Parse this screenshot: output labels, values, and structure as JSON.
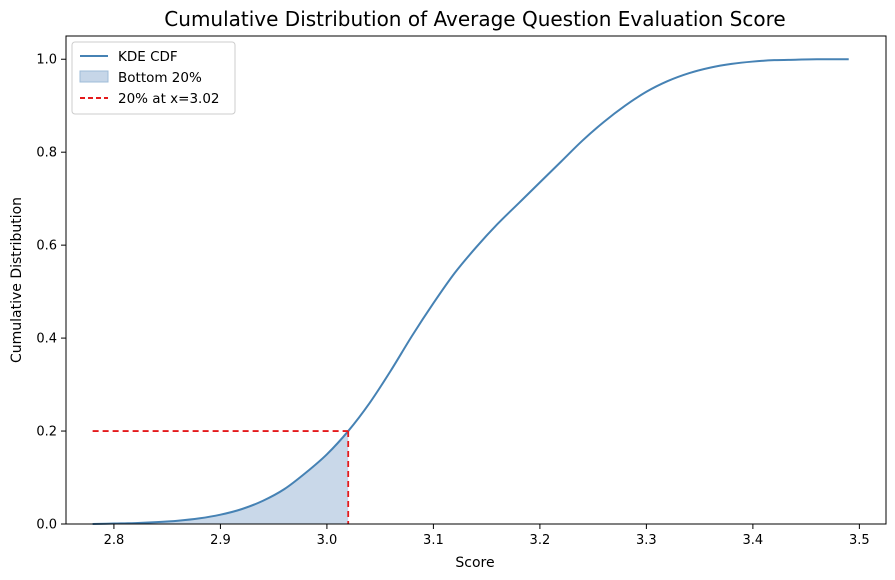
{
  "chart_data": {
    "type": "line",
    "title": "Cumulative Distribution of Average Question Evaluation Score",
    "xlabel": "Score",
    "ylabel": "Cumulative Distribution",
    "xlim": [
      2.755,
      3.525
    ],
    "ylim": [
      0,
      1.05
    ],
    "xticks": [
      2.8,
      2.9,
      3.0,
      3.1,
      3.2,
      3.3,
      3.4,
      3.5
    ],
    "xtick_labels": [
      "2.8",
      "2.9",
      "3.0",
      "3.1",
      "3.2",
      "3.3",
      "3.4",
      "3.5"
    ],
    "yticks": [
      0.0,
      0.2,
      0.4,
      0.6,
      0.8,
      1.0
    ],
    "ytick_labels": [
      "0.0",
      "0.2",
      "0.4",
      "0.6",
      "0.8",
      "1.0"
    ],
    "grid": false,
    "legend_position": "top-left",
    "series": [
      {
        "name": "KDE CDF",
        "color": "#4682b4",
        "x": [
          2.78,
          2.8,
          2.82,
          2.84,
          2.86,
          2.88,
          2.9,
          2.92,
          2.94,
          2.96,
          2.98,
          3.0,
          3.02,
          3.04,
          3.06,
          3.08,
          3.1,
          3.12,
          3.14,
          3.16,
          3.18,
          3.2,
          3.22,
          3.24,
          3.26,
          3.28,
          3.3,
          3.32,
          3.34,
          3.36,
          3.38,
          3.4,
          3.42,
          3.44,
          3.46,
          3.49
        ],
        "y": [
          0.0,
          0.001,
          0.002,
          0.004,
          0.007,
          0.012,
          0.02,
          0.032,
          0.05,
          0.075,
          0.11,
          0.15,
          0.2,
          0.26,
          0.33,
          0.405,
          0.475,
          0.54,
          0.595,
          0.645,
          0.69,
          0.735,
          0.78,
          0.825,
          0.865,
          0.9,
          0.93,
          0.953,
          0.97,
          0.982,
          0.99,
          0.995,
          0.998,
          0.999,
          1.0,
          1.0
        ]
      }
    ],
    "shaded_region": {
      "name": "Bottom 20%",
      "color": "#c6d6e8",
      "x_max": 3.02
    },
    "threshold": {
      "name": "20% at x=3.02",
      "color": "#e41a1c",
      "x": 3.02,
      "y": 0.2
    }
  }
}
